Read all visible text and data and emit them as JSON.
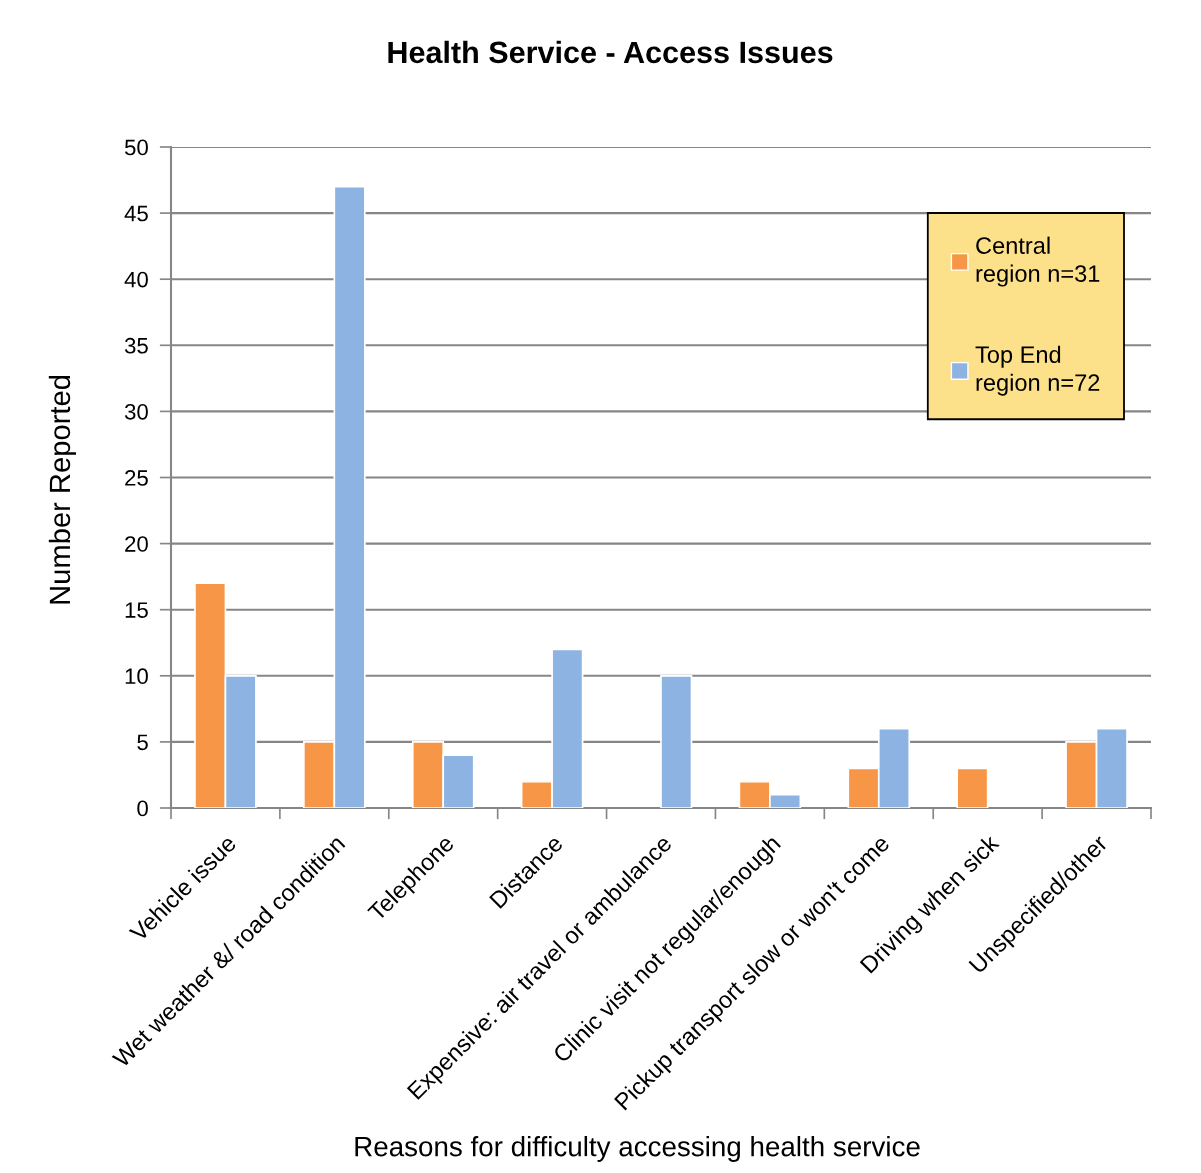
{
  "chart_data": {
    "type": "bar",
    "title": "Health Service - Access Issues",
    "xlabel": "Reasons for difficulty accessing health service",
    "ylabel": "Number Reported",
    "categories": [
      "Vehicle issue",
      "Wet weather &/ road condition",
      "Telephone",
      "Distance",
      "Expensive: air travel or ambulance",
      "Clinic visit not regular/enough",
      "Pickup transport slow or won't come",
      "Driving when sick",
      "Unspecified/other"
    ],
    "series": [
      {
        "name": "Central\nregion n=31",
        "color": "#f79646",
        "values": [
          17,
          5,
          5,
          2,
          null,
          2,
          3,
          3,
          5
        ]
      },
      {
        "name": "Top End\nregion n=72",
        "color": "#8db3e2",
        "values": [
          10,
          47,
          4,
          12,
          10,
          1,
          6,
          null,
          6
        ]
      }
    ],
    "ylim": [
      0,
      50
    ],
    "yticks": [
      0,
      5,
      10,
      15,
      20,
      25,
      30,
      35,
      40,
      45,
      50
    ],
    "grid": "y",
    "legend": "top right"
  }
}
